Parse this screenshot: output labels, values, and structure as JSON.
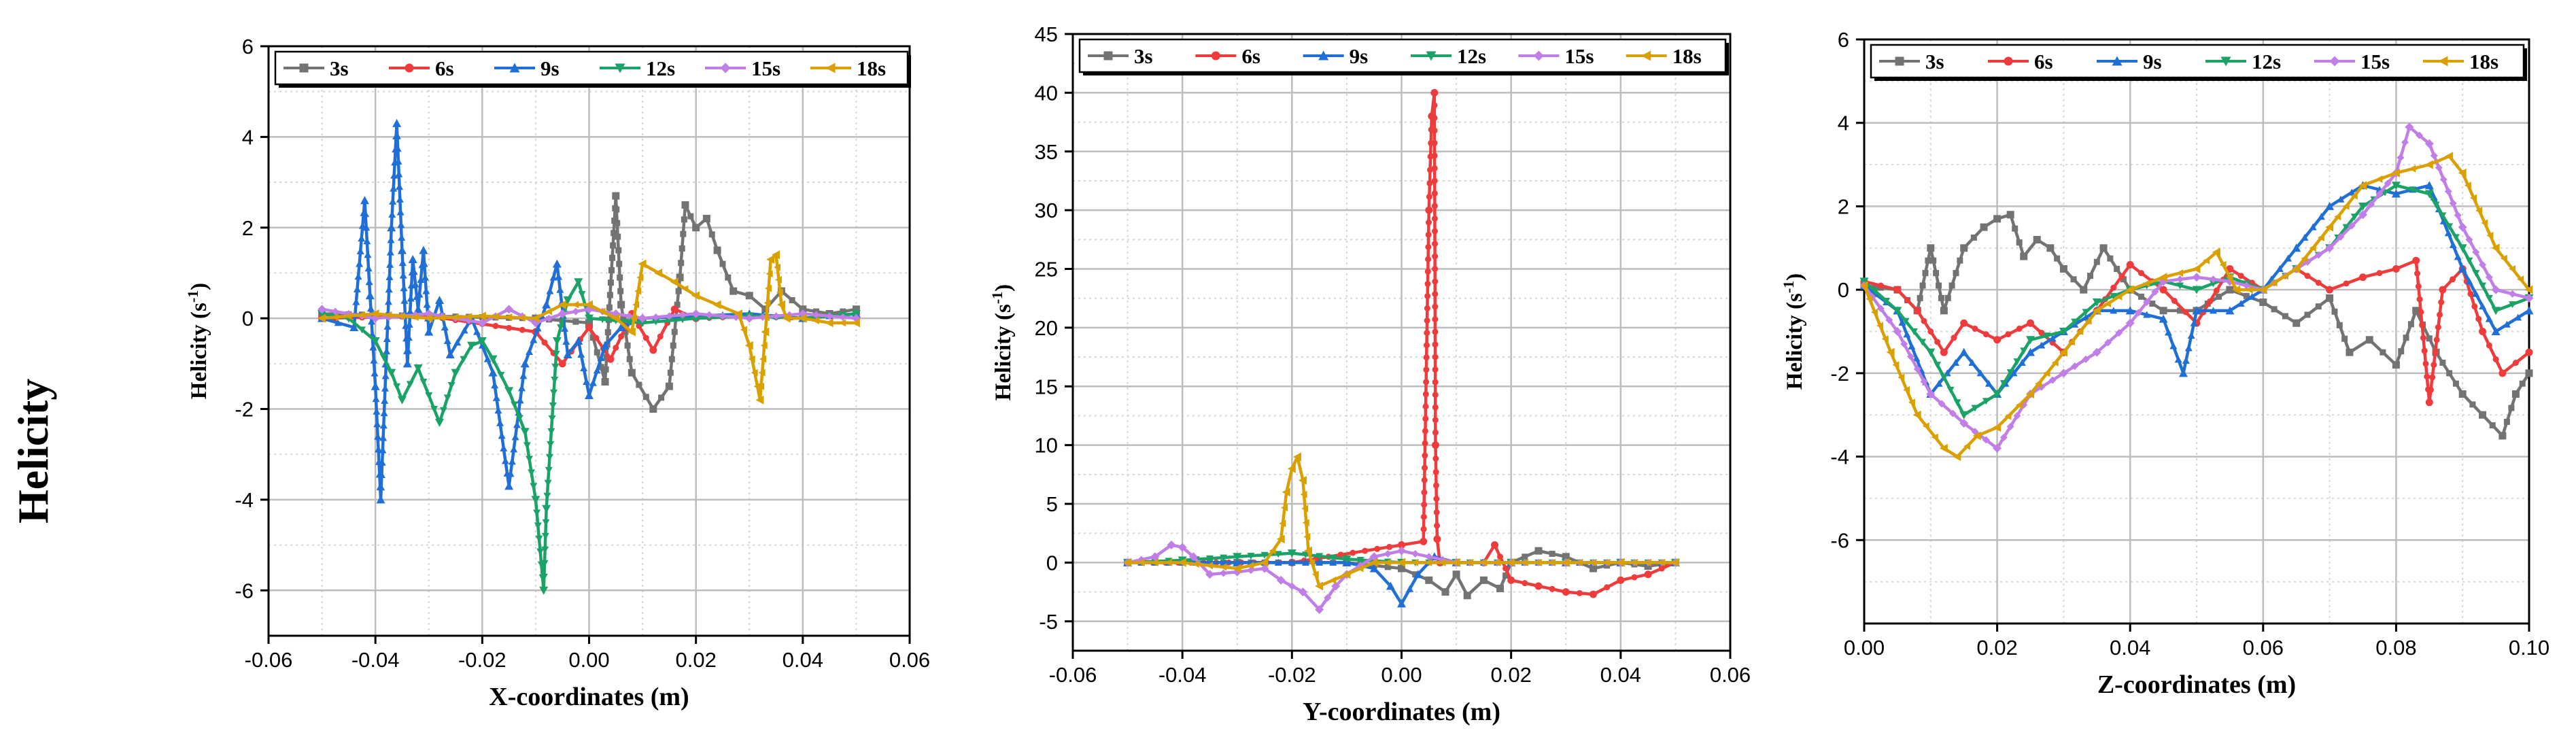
{
  "row_label": "Helicity",
  "series_colors": {
    "3s": "#737373",
    "6s": "#ee3b3b",
    "9s": "#1f6fd6",
    "12s": "#1aa267",
    "15s": "#c07ee6",
    "18s": "#d9a000"
  },
  "chart_data": [
    {
      "type": "line",
      "title": "",
      "xlabel": "X-coordinates (m)",
      "ylabel_main": "Helicity (s",
      "ylabel_sup": "-1",
      "ylabel_end": ")",
      "xlim": [
        -0.06,
        0.06
      ],
      "ylim": [
        -7,
        6
      ],
      "xticks": [
        -0.06,
        -0.04,
        -0.02,
        0.0,
        0.02,
        0.04,
        0.06
      ],
      "xtick_labels": [
        "-0.06",
        "-0.04",
        "-0.02",
        "0.00",
        "0.02",
        "0.04",
        "0.06"
      ],
      "yticks": [
        -6,
        -4,
        -2,
        0,
        2,
        4,
        6
      ],
      "ytick_labels": [
        "-6",
        "-4",
        "-2",
        "0",
        "2",
        "4",
        "6"
      ],
      "legend": [
        "3s",
        "6s",
        "9s",
        "12s",
        "15s",
        "18s"
      ],
      "series": [
        {
          "name": "3s",
          "x": [
            -0.05,
            -0.03,
            -0.01,
            0.0,
            0.003,
            0.005,
            0.006,
            0.008,
            0.012,
            0.015,
            0.017,
            0.018,
            0.02,
            0.022,
            0.024,
            0.027,
            0.03,
            0.033,
            0.036,
            0.04,
            0.045,
            0.05
          ],
          "y": [
            0.1,
            0.05,
            0.0,
            -0.1,
            -1.4,
            2.7,
            0.3,
            -1.2,
            -2.0,
            -1.5,
            0.9,
            2.5,
            2.0,
            2.2,
            1.5,
            0.6,
            0.5,
            0.2,
            0.6,
            0.2,
            0.1,
            0.2
          ]
        },
        {
          "name": "6s",
          "x": [
            -0.05,
            -0.03,
            -0.01,
            -0.005,
            0.0,
            0.004,
            0.008,
            0.012,
            0.016,
            0.02,
            0.03,
            0.04,
            0.05
          ],
          "y": [
            0.0,
            0.05,
            -0.3,
            -1.0,
            -0.2,
            -0.9,
            0.1,
            -0.7,
            0.2,
            0.0,
            0.05,
            0.0,
            0.1
          ]
        },
        {
          "name": "9s",
          "x": [
            -0.05,
            -0.044,
            -0.042,
            -0.041,
            -0.04,
            -0.039,
            -0.038,
            -0.037,
            -0.036,
            -0.035,
            -0.034,
            -0.033,
            -0.032,
            -0.031,
            -0.03,
            -0.028,
            -0.026,
            -0.022,
            -0.018,
            -0.015,
            -0.012,
            -0.008,
            -0.006,
            -0.004,
            -0.002,
            0.0,
            0.003,
            0.006,
            0.01,
            0.02,
            0.03,
            0.04,
            0.05
          ],
          "y": [
            0.0,
            -0.2,
            2.6,
            0.5,
            -1.5,
            -4.0,
            -1.0,
            2.0,
            4.3,
            1.5,
            -1.0,
            1.3,
            0.2,
            1.5,
            -0.3,
            0.4,
            -0.8,
            0.0,
            -1.2,
            -3.7,
            -1.0,
            0.3,
            1.2,
            -0.8,
            -0.5,
            -1.7,
            -0.6,
            -0.2,
            0.0,
            0.05,
            0.1,
            0.0,
            0.1
          ]
        },
        {
          "name": "12s",
          "x": [
            -0.05,
            -0.045,
            -0.04,
            -0.037,
            -0.035,
            -0.032,
            -0.028,
            -0.025,
            -0.022,
            -0.02,
            -0.018,
            -0.015,
            -0.012,
            -0.01,
            -0.0085,
            -0.008,
            -0.006,
            -0.004,
            -0.002,
            0.0,
            0.01,
            0.02,
            0.03,
            0.04,
            0.05
          ],
          "y": [
            0.1,
            0.0,
            -0.5,
            -1.2,
            -1.8,
            -1.1,
            -2.3,
            -1.2,
            -0.6,
            -0.5,
            -0.9,
            -1.6,
            -2.5,
            -4.0,
            -6.0,
            -4.2,
            -0.5,
            0.4,
            0.8,
            0.0,
            -0.1,
            0.0,
            0.05,
            0.0,
            0.1
          ]
        },
        {
          "name": "15s",
          "x": [
            -0.05,
            -0.04,
            -0.03,
            -0.02,
            -0.015,
            -0.01,
            -0.005,
            0.0,
            0.005,
            0.01,
            0.02,
            0.03,
            0.04,
            0.05
          ],
          "y": [
            0.2,
            0.0,
            0.1,
            -0.1,
            0.2,
            -0.1,
            0.1,
            0.2,
            0.1,
            0.0,
            0.1,
            0.0,
            0.1,
            0.0
          ]
        },
        {
          "name": "18s",
          "x": [
            -0.05,
            -0.04,
            -0.03,
            -0.02,
            -0.01,
            -0.005,
            0.0,
            0.005,
            0.008,
            0.01,
            0.013,
            0.016,
            0.02,
            0.024,
            0.028,
            0.03,
            0.032,
            0.033,
            0.034,
            0.035,
            0.036,
            0.037,
            0.04,
            0.045,
            0.05
          ],
          "y": [
            0.0,
            0.1,
            0.0,
            0.05,
            0.0,
            0.3,
            0.3,
            0.0,
            -0.3,
            1.2,
            1.0,
            0.8,
            0.5,
            0.3,
            0.1,
            -0.6,
            -1.8,
            -0.3,
            1.3,
            1.4,
            0.3,
            0.0,
            0.0,
            -0.1,
            -0.1
          ]
        }
      ]
    },
    {
      "type": "line",
      "title": "",
      "xlabel": "Y-coordinates (m)",
      "ylabel_main": "Helicity (s",
      "ylabel_sup": "-1",
      "ylabel_end": ")",
      "xlim": [
        -0.06,
        0.06
      ],
      "ylim": [
        -7.5,
        45
      ],
      "xticks": [
        -0.06,
        -0.04,
        -0.02,
        0.0,
        0.02,
        0.04,
        0.06
      ],
      "xtick_labels": [
        "-0.06",
        "-0.04",
        "-0.02",
        "0.00",
        "0.02",
        "0.04",
        "0.06"
      ],
      "yticks": [
        -5,
        0,
        5,
        10,
        15,
        20,
        25,
        30,
        35,
        40,
        45
      ],
      "ytick_labels": [
        "-5",
        "0",
        "5",
        "10",
        "15",
        "20",
        "25",
        "30",
        "35",
        "40",
        "45"
      ],
      "legend": [
        "3s",
        "6s",
        "9s",
        "12s",
        "15s",
        "18s"
      ],
      "series": [
        {
          "name": "3s",
          "x": [
            -0.05,
            -0.03,
            -0.01,
            0.0,
            0.005,
            0.008,
            0.01,
            0.012,
            0.015,
            0.018,
            0.02,
            0.025,
            0.03,
            0.035,
            0.04,
            0.045,
            0.05
          ],
          "y": [
            0.0,
            0.0,
            0.0,
            -0.5,
            -1.5,
            -2.5,
            -1.0,
            -2.8,
            -1.5,
            -2.2,
            0.0,
            1.0,
            0.5,
            -0.5,
            0.0,
            -0.3,
            0.0
          ]
        },
        {
          "name": "6s",
          "x": [
            -0.05,
            -0.02,
            0.0,
            0.004,
            0.005,
            0.0055,
            0.006,
            0.0062,
            0.0065,
            0.007,
            0.01,
            0.015,
            0.017,
            0.02,
            0.025,
            0.03,
            0.035,
            0.04,
            0.045,
            0.05
          ],
          "y": [
            0.0,
            0.0,
            1.5,
            1.8,
            30.0,
            38.0,
            40.0,
            10.0,
            2.0,
            0.0,
            0.0,
            0.0,
            1.5,
            -1.5,
            -2.0,
            -2.5,
            -2.7,
            -1.5,
            -1.0,
            0.0
          ]
        },
        {
          "name": "9s",
          "x": [
            -0.05,
            -0.03,
            -0.01,
            -0.005,
            -0.002,
            0.0,
            0.003,
            0.006,
            0.01,
            0.02,
            0.03,
            0.04,
            0.05
          ],
          "y": [
            0.0,
            0.0,
            0.0,
            -0.5,
            -2.0,
            -3.5,
            -1.0,
            0.5,
            0.0,
            0.0,
            0.0,
            0.0,
            0.0
          ]
        },
        {
          "name": "12s",
          "x": [
            -0.05,
            -0.04,
            -0.03,
            -0.02,
            -0.01,
            0.0,
            0.01,
            0.02,
            0.03,
            0.04,
            0.05
          ],
          "y": [
            0.0,
            0.2,
            0.5,
            0.8,
            0.3,
            0.0,
            0.0,
            0.0,
            0.0,
            0.0,
            0.0
          ]
        },
        {
          "name": "15s",
          "x": [
            -0.05,
            -0.045,
            -0.042,
            -0.04,
            -0.038,
            -0.035,
            -0.03,
            -0.025,
            -0.022,
            -0.018,
            -0.015,
            -0.012,
            -0.01,
            -0.005,
            0.0,
            0.01,
            0.02,
            0.03,
            0.04,
            0.05
          ],
          "y": [
            0.0,
            0.5,
            1.5,
            1.3,
            0.5,
            -1.0,
            -0.8,
            -0.5,
            -1.5,
            -2.5,
            -4.0,
            -2.0,
            -1.0,
            0.5,
            1.0,
            0.0,
            0.0,
            0.0,
            0.0,
            0.0
          ]
        },
        {
          "name": "18s",
          "x": [
            -0.05,
            -0.04,
            -0.03,
            -0.025,
            -0.022,
            -0.021,
            -0.02,
            -0.019,
            -0.018,
            -0.017,
            -0.015,
            -0.01,
            -0.005,
            0.0,
            0.01,
            0.02,
            0.03,
            0.04,
            0.05
          ],
          "y": [
            0.0,
            0.0,
            -0.5,
            0.0,
            2.0,
            6.0,
            8.0,
            9.0,
            7.0,
            1.0,
            -2.0,
            -1.0,
            0.0,
            0.0,
            0.0,
            0.0,
            0.0,
            0.0,
            0.0
          ]
        }
      ]
    },
    {
      "type": "line",
      "title": "",
      "xlabel": "Z-coordinates (m)",
      "ylabel_main": "Helicity (s",
      "ylabel_sup": "-1",
      "ylabel_end": ")",
      "xlim": [
        0.0,
        0.1
      ],
      "ylim": [
        -8,
        6
      ],
      "xticks": [
        0.0,
        0.02,
        0.04,
        0.06,
        0.08,
        0.1
      ],
      "xtick_labels": [
        "0.00",
        "0.02",
        "0.04",
        "0.06",
        "0.08",
        "0.10"
      ],
      "yticks": [
        -6,
        -4,
        -2,
        0,
        2,
        4,
        6
      ],
      "ytick_labels": [
        "-6",
        "-4",
        "-2",
        "0",
        "2",
        "4",
        "6"
      ],
      "legend": [
        "3s",
        "6s",
        "9s",
        "12s",
        "15s",
        "18s"
      ],
      "series": [
        {
          "name": "3s",
          "x": [
            0.0,
            0.005,
            0.008,
            0.01,
            0.012,
            0.015,
            0.018,
            0.02,
            0.022,
            0.024,
            0.026,
            0.028,
            0.03,
            0.033,
            0.036,
            0.04,
            0.045,
            0.05,
            0.055,
            0.06,
            0.065,
            0.07,
            0.073,
            0.076,
            0.08,
            0.083,
            0.086,
            0.09,
            0.093,
            0.096,
            0.098,
            0.1
          ],
          "y": [
            0.1,
            0.0,
            -0.5,
            1.0,
            -0.5,
            1.0,
            1.5,
            1.7,
            1.8,
            0.8,
            1.2,
            1.0,
            0.5,
            0.0,
            1.0,
            0.0,
            -0.5,
            -0.5,
            0.0,
            -0.3,
            -0.8,
            -0.2,
            -1.5,
            -1.2,
            -1.8,
            -0.5,
            -1.5,
            -2.5,
            -3.0,
            -3.5,
            -2.5,
            -2.0
          ]
        },
        {
          "name": "6s",
          "x": [
            0.0,
            0.005,
            0.008,
            0.012,
            0.015,
            0.02,
            0.025,
            0.03,
            0.035,
            0.04,
            0.045,
            0.05,
            0.055,
            0.06,
            0.065,
            0.07,
            0.075,
            0.08,
            0.083,
            0.085,
            0.087,
            0.09,
            0.093,
            0.096,
            0.1
          ],
          "y": [
            0.2,
            0.0,
            -0.5,
            -1.5,
            -0.8,
            -1.2,
            -0.8,
            -1.5,
            -0.5,
            0.6,
            0.0,
            -0.8,
            0.5,
            0.0,
            0.5,
            0.0,
            0.3,
            0.5,
            0.7,
            -2.7,
            0.0,
            0.5,
            -1.0,
            -2.0,
            -1.5
          ]
        },
        {
          "name": "9s",
          "x": [
            0.0,
            0.005,
            0.01,
            0.015,
            0.02,
            0.025,
            0.03,
            0.035,
            0.04,
            0.045,
            0.048,
            0.05,
            0.055,
            0.06,
            0.065,
            0.07,
            0.075,
            0.08,
            0.085,
            0.09,
            0.095,
            0.1
          ],
          "y": [
            0.1,
            -0.5,
            -2.5,
            -1.5,
            -2.5,
            -1.5,
            -1.0,
            -0.5,
            -0.5,
            -0.7,
            -2.0,
            -0.5,
            -0.5,
            0.0,
            1.0,
            2.0,
            2.5,
            2.3,
            2.5,
            0.5,
            -1.0,
            -0.5
          ]
        },
        {
          "name": "12s",
          "x": [
            0.0,
            0.005,
            0.01,
            0.015,
            0.02,
            0.025,
            0.03,
            0.035,
            0.04,
            0.045,
            0.05,
            0.055,
            0.06,
            0.065,
            0.07,
            0.075,
            0.08,
            0.085,
            0.09,
            0.095,
            0.1
          ],
          "y": [
            0.2,
            -0.5,
            -1.5,
            -3.0,
            -2.5,
            -1.2,
            -1.0,
            -0.3,
            0.0,
            0.2,
            0.0,
            0.3,
            0.0,
            0.5,
            1.0,
            2.0,
            2.5,
            2.3,
            1.0,
            -0.5,
            -0.2
          ]
        },
        {
          "name": "15s",
          "x": [
            0.0,
            0.005,
            0.01,
            0.015,
            0.02,
            0.025,
            0.03,
            0.035,
            0.04,
            0.045,
            0.05,
            0.055,
            0.06,
            0.065,
            0.07,
            0.075,
            0.08,
            0.082,
            0.085,
            0.09,
            0.095,
            0.1
          ],
          "y": [
            0.1,
            -1.0,
            -2.5,
            -3.2,
            -3.8,
            -2.5,
            -2.0,
            -1.5,
            -0.8,
            0.2,
            0.3,
            0.2,
            0.0,
            0.5,
            1.0,
            1.8,
            2.8,
            3.9,
            3.5,
            1.5,
            0.0,
            -0.2
          ]
        },
        {
          "name": "18s",
          "x": [
            0.0,
            0.004,
            0.008,
            0.012,
            0.014,
            0.017,
            0.02,
            0.025,
            0.03,
            0.035,
            0.04,
            0.045,
            0.05,
            0.053,
            0.056,
            0.06,
            0.065,
            0.07,
            0.075,
            0.08,
            0.085,
            0.088,
            0.09,
            0.095,
            0.1
          ],
          "y": [
            0.1,
            -1.5,
            -3.0,
            -3.8,
            -4.0,
            -3.5,
            -3.3,
            -2.5,
            -1.5,
            -0.5,
            0.0,
            0.3,
            0.5,
            0.9,
            0.0,
            0.0,
            0.5,
            1.5,
            2.5,
            2.8,
            3.0,
            3.2,
            2.8,
            1.0,
            0.0
          ]
        }
      ]
    }
  ]
}
